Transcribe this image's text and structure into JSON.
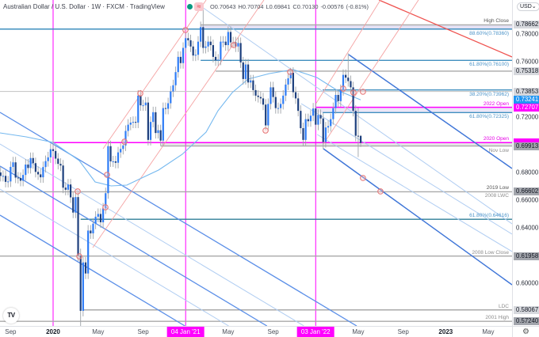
{
  "header": {
    "title": "Australian Dollar / U.S. Dollar · 1W · FXCM · TradingView",
    "alert_glyph": "≈",
    "ohlc": {
      "o_label": "O",
      "o": "0.70643",
      "h_label": "H",
      "h": "0.70704",
      "l_label": "L",
      "l": "0.69841",
      "c_label": "C",
      "c": "0.70130",
      "change": "-0.00576",
      "change_pct": "(-0.81%)"
    }
  },
  "branding": {
    "logo_glyph": "TV"
  },
  "price_axis": {
    "currency": "USD",
    "currency_chevron": "⌄",
    "ticks": [
      {
        "label": "0.78000",
        "price": 0.78
      },
      {
        "label": "0.76000",
        "price": 0.76
      },
      {
        "label": "0.72000",
        "price": 0.72
      },
      {
        "label": "0.68000",
        "price": 0.68
      },
      {
        "label": "0.66000",
        "price": 0.66
      },
      {
        "label": "0.64000",
        "price": 0.64
      },
      {
        "label": "0.60000",
        "price": 0.6
      }
    ],
    "tags": [
      {
        "label": "0.78662",
        "price": 0.78662
      },
      {
        "label": "0.75318",
        "price": 0.75318
      },
      {
        "label": "0.73853",
        "price": 0.73853
      },
      {
        "label": "0.73241",
        "price": 0.73241
      },
      {
        "label": "0.72707",
        "price": 0.72707
      },
      {
        "label": "",
        "price": 0.7016
      },
      {
        "label": "0.69913",
        "price": 0.69913
      },
      {
        "label": "0.66602",
        "price": 0.66602
      },
      {
        "label": "0.61958",
        "price": 0.61958
      },
      {
        "label": "0.58067",
        "price": 0.58067
      },
      {
        "label": "0.57240",
        "price": 0.5724
      }
    ]
  },
  "time_axis": {
    "labels": [
      {
        "text": "Sep",
        "week": 4
      },
      {
        "text": "2020",
        "week": 21
      },
      {
        "text": "May",
        "week": 39
      },
      {
        "text": "Sep",
        "week": 57
      },
      {
        "text": "May",
        "week": 91
      },
      {
        "text": "Sep",
        "week": 109
      },
      {
        "text": "May",
        "week": 143
      },
      {
        "text": "Sep",
        "week": 161
      },
      {
        "text": "2023",
        "week": 178
      },
      {
        "text": "May",
        "week": 195
      }
    ],
    "highlights": [
      {
        "text": "04 Jan '21",
        "week": 74
      },
      {
        "text": "03 Jan '22",
        "week": 126
      }
    ],
    "settings_glyph": "⚙"
  },
  "level_labels": [
    {
      "text": "High Close",
      "price": 0.78662
    },
    {
      "text": "88.60%(0.78360)",
      "price": 0.7836
    },
    {
      "text": "61.80%(0.76100)",
      "price": 0.761
    },
    {
      "text": "38.20%(0.73962)",
      "price": 0.73962
    },
    {
      "text": "2022 Open",
      "price": 0.72707
    },
    {
      "text": "61.80%(0.72325)",
      "price": 0.72325
    },
    {
      "text": "2020 Open",
      "price": 0.7016
    },
    {
      "text": "Nov Low",
      "price": 0.69913
    },
    {
      "text": "2019 Low",
      "price": 0.66602
    },
    {
      "text": "2008 LWC",
      "price": 0.66602
    },
    {
      "text": "61.80%(0.64616)",
      "price": 0.64616
    },
    {
      "text": "2008 Low Close",
      "price": 0.61958
    },
    {
      "text": "LDC",
      "price": 0.58067
    },
    {
      "text": "2001 High",
      "price": 0.5724
    }
  ],
  "colors": {
    "candle_up": "#2e7cf6",
    "candle_down": "#1d3f7d",
    "wick": "#9ea3a8",
    "fib": "#3f8fbf",
    "fib_dark": "#2f7f97",
    "gray": "#a9a9a9",
    "gray_light": "#c9c9c9",
    "magenta": "#ff00ff",
    "blue": "#5b8fe8",
    "blue_thick": "#3f76d8",
    "light": "#b0cdf2",
    "red": "#ef5350",
    "pink": "#f5a3a3",
    "ma": "#74b8ef",
    "marker": "#e57373"
  },
  "chart_data": {
    "type": "bar",
    "bar_style": "candlestick",
    "title": "Australian Dollar / U.S. Dollar · 1W · FXCM · TradingView",
    "xlabel": "",
    "ylabel": "",
    "interval": "1W",
    "xlim_weeks": [
      -0.235,
      204.52
    ],
    "ylim": [
      0.5691,
      0.8046
    ],
    "grid": false,
    "legend": "none",
    "last_bar": {
      "open": 0.70643,
      "high": 0.70704,
      "low": 0.69841,
      "close": 0.7013,
      "change": -0.00576,
      "change_pct": -0.81
    },
    "candles": {
      "start_week": 0,
      "first_open": 0.68,
      "wick_default": 0.004,
      "close": [
        0.6775,
        0.6775,
        0.6732,
        0.6735,
        0.684,
        0.6873,
        0.6763,
        0.676,
        0.674,
        0.6782,
        0.6857,
        0.6832,
        0.6904,
        0.6867,
        0.6804,
        0.6786,
        0.6765,
        0.6839,
        0.6882,
        0.6909,
        0.6968,
        0.6955,
        0.69,
        0.6862,
        0.685,
        0.669,
        0.6675,
        0.6713,
        0.662,
        0.651,
        0.6622,
        0.62,
        0.58,
        0.615,
        0.607,
        0.638,
        0.636,
        0.643,
        0.648,
        0.65,
        0.644,
        0.654,
        0.665,
        0.699,
        0.688,
        0.688,
        0.687,
        0.6945,
        0.697,
        0.6995,
        0.71,
        0.7145,
        0.716,
        0.7165,
        0.716,
        0.7355,
        0.7285,
        0.7285,
        0.7305,
        0.7035,
        0.7165,
        0.7235,
        0.7085,
        0.7105,
        0.703,
        0.7265,
        0.726,
        0.73,
        0.7385,
        0.743,
        0.7525,
        0.7635,
        0.759,
        0.77,
        0.777,
        0.7755,
        0.771,
        0.7645,
        0.765,
        0.7745,
        0.785,
        0.77,
        0.771,
        0.7745,
        0.772,
        0.7635,
        0.761,
        0.7615,
        0.7745,
        0.7745,
        0.772,
        0.7815,
        0.774,
        0.774,
        0.771,
        0.7735,
        0.7595,
        0.7475,
        0.758,
        0.745,
        0.7465,
        0.7395,
        0.7355,
        0.7345,
        0.7335,
        0.729,
        0.714,
        0.7295,
        0.7415,
        0.7345,
        0.7265,
        0.7265,
        0.7295,
        0.7355,
        0.7435,
        0.748,
        0.752,
        0.738,
        0.7335,
        0.7245,
        0.712,
        0.7035,
        0.7185,
        0.717,
        0.721,
        0.7262,
        0.7145,
        0.7215,
        0.719,
        0.702,
        0.7125,
        0.7135,
        0.7185,
        0.7265,
        0.736,
        0.7315,
        0.7395,
        0.7505,
        0.7485,
        0.746,
        0.7415,
        0.7245,
        0.7065,
        0.7064,
        0.7013
      ],
      "overrides": {
        "21": {
          "h": 0.7032
        },
        "32": {
          "h": 0.625,
          "l": 0.5506
        },
        "64": {
          "l": 0.6991
        },
        "81": {
          "h": 0.8007
        },
        "106": {
          "l": 0.7106
        },
        "116": {
          "h": 0.7556
        },
        "121": {
          "l": 0.6993
        },
        "129": {
          "l": 0.6967
        },
        "139": {
          "h": 0.7661
        },
        "143": {
          "h": 0.7266,
          "l": 0.6911
        },
        "144": {
          "o": 0.70643,
          "h": 0.70704,
          "l": 0.69841
        }
      }
    },
    "moving_average": [
      [
        -0.235,
        0.70857
      ],
      [
        10.23,
        0.70571
      ],
      [
        21.0,
        0.70171
      ],
      [
        31.46,
        0.68857
      ],
      [
        37.8,
        0.67314
      ],
      [
        44.14,
        0.67028
      ],
      [
        50.48,
        0.67085
      ],
      [
        57.77,
        0.67714
      ],
      [
        63.16,
        0.68171
      ],
      [
        72.66,
        0.69314
      ],
      [
        82.17,
        0.70914
      ],
      [
        86.93,
        0.72457
      ],
      [
        92.64,
        0.73772
      ],
      [
        98.97,
        0.74743
      ],
      [
        107.5,
        0.75143
      ],
      [
        117.0,
        0.7543
      ],
      [
        126.5,
        0.74858
      ],
      [
        134.5,
        0.73943
      ],
      [
        144.0,
        0.73241
      ]
    ],
    "horizontal_levels": [
      {
        "name": "high-close",
        "price": 0.78662,
        "from_week": 80,
        "style": "gray"
      },
      {
        "name": "fib-88-6",
        "price": 0.7836,
        "from_week": null,
        "style": "fib"
      },
      {
        "name": "fib-61-8-upper",
        "price": 0.761,
        "from_week": 80,
        "style": "fib"
      },
      {
        "name": "level-0-75318",
        "price": 0.75318,
        "from_week": 86,
        "style": "gray"
      },
      {
        "name": "level-0-73853",
        "price": 0.73853,
        "from_week": null,
        "style": "gray_light"
      },
      {
        "name": "fib-38-2",
        "price": 0.73962,
        "from_week": 128.8,
        "style": "fib"
      },
      {
        "name": "open-2022",
        "price": 0.72707,
        "from_week": 126,
        "style": "magenta"
      },
      {
        "name": "fib-61-8-mid",
        "price": 0.72325,
        "from_week": 128.8,
        "style": "fib"
      },
      {
        "name": "open-2020",
        "price": 0.7016,
        "from_week": 21,
        "style": "magenta"
      },
      {
        "name": "nov-low",
        "price": 0.69913,
        "from_week": 64,
        "style": "gray"
      },
      {
        "name": "low-2019",
        "price": 0.66602,
        "from_week": null,
        "style": "gray"
      },
      {
        "name": "fib-61-8-lower",
        "price": 0.64616,
        "from_week": 32,
        "style": "fib_dark"
      },
      {
        "name": "low-close-2008",
        "price": 0.61958,
        "from_week": null,
        "style": "gray"
      },
      {
        "name": "ldc",
        "price": 0.58067,
        "from_week": 33,
        "style": "gray"
      },
      {
        "name": "high-2001",
        "price": 0.5724,
        "from_week": null,
        "style": "gray"
      }
    ],
    "bands": [
      {
        "top": 0.78662,
        "bottom": 0.7836,
        "from_week": 80,
        "color": "#e4e1f4"
      },
      {
        "top": 0.72707,
        "bottom": 0.72325,
        "from_week": 126,
        "color": "#ebe6f6"
      },
      {
        "top": 0.7016,
        "bottom": 0.69913,
        "from_week": 64,
        "color": "#e6e6e6"
      }
    ],
    "vertical_lines": [
      {
        "label": "2020",
        "week": 21
      },
      {
        "label": "04 Jan '21",
        "week": 74
      },
      {
        "label": "03 Jan '22",
        "week": 126
      }
    ],
    "trend_lines": [
      {
        "from": [
          -0.235,
          0.72343
        ],
        "to": [
          142.4,
          0.5691
        ],
        "style": "blue"
      },
      {
        "from": [
          -0.235,
          0.70057
        ],
        "to": [
          121.3,
          0.5691
        ],
        "style": "light"
      },
      {
        "from": [
          -0.235,
          0.68457
        ],
        "to": [
          106.5,
          0.5691
        ],
        "style": "blue"
      },
      {
        "from": [
          -0.235,
          0.66799
        ],
        "to": [
          91.2,
          0.5691
        ],
        "style": "light"
      },
      {
        "from": [
          -0.235,
          0.64913
        ],
        "to": [
          73.7,
          0.5691
        ],
        "style": "blue"
      },
      {
        "from": [
          80.6,
          0.79946
        ],
        "to": [
          204.52,
          0.64284
        ],
        "style": "light"
      },
      {
        "from": [
          120.2,
          0.72972
        ],
        "to": [
          204.52,
          0.63541
        ],
        "style": "light"
      },
      {
        "from": [
          126.6,
          0.70743
        ],
        "to": [
          204.52,
          0.62283
        ],
        "style": "light"
      },
      {
        "from": [
          139.2,
          0.76516
        ],
        "to": [
          204.52,
          0.68285
        ],
        "style": "blue_thick"
      },
      {
        "from": [
          129.1,
          0.69714
        ],
        "to": [
          204.52,
          0.59883
        ],
        "style": "blue_thick"
      },
      {
        "from": [
          151.3,
          0.8046
        ],
        "to": [
          204.52,
          0.76345
        ],
        "style": "red"
      },
      {
        "from": [
          36.85,
          0.62569
        ],
        "to": [
          105.3,
          0.8046
        ],
        "style": "pink"
      },
      {
        "from": [
          40.97,
          0.69714
        ],
        "to": [
          82.2,
          0.8046
        ],
        "style": "pink"
      },
      {
        "from": [
          125.9,
          0.72915
        ],
        "to": [
          151.9,
          0.8046
        ],
        "style": "pink"
      },
      {
        "from": [
          129.1,
          0.70057
        ],
        "to": [
          167.1,
          0.8046
        ],
        "style": "pink"
      }
    ],
    "markers": [
      [
        30.83,
        0.66628
      ],
      [
        42.56,
        0.67828
      ],
      [
        41.92,
        0.65484
      ],
      [
        31.46,
        0.6194
      ],
      [
        49.53,
        0.70228
      ],
      [
        55.87,
        0.73715
      ],
      [
        73.93,
        0.78288
      ],
      [
        93.27,
        0.77202
      ],
      [
        115.77,
        0.75259
      ],
      [
        105.95,
        0.71028
      ],
      [
        137.0,
        0.74058
      ],
      [
        141.1,
        0.73772
      ],
      [
        144.9,
        0.7383
      ],
      [
        144.9,
        0.67599
      ],
      [
        151.9,
        0.66628
      ]
    ]
  }
}
